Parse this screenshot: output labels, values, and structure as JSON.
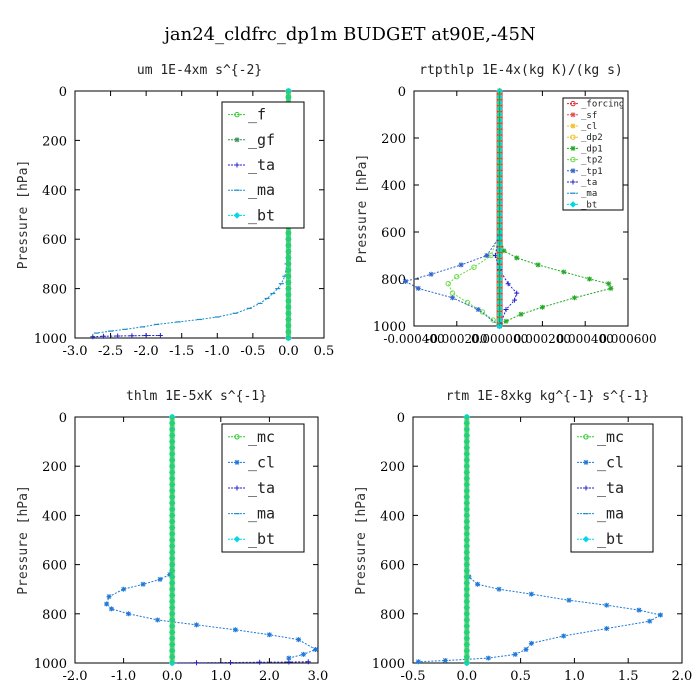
{
  "suptitle": "jan24_cldfrc_dp1m  BUDGET at90E,-45N",
  "colors": {
    "f": "#2ecc2e",
    "gf": "#3a8f5a",
    "ta": "#2222cc",
    "ma": "#1e90c8",
    "bt": "#00d8e8",
    "cl": "#1e78d8",
    "mc": "#33cc33",
    "forcing": "#e02020",
    "sf": "#e05050",
    "dp2": "#f0c020",
    "dp1": "#22aa22",
    "tp2": "#66dd44",
    "tp1": "#3366cc"
  },
  "chart_data": [
    {
      "type": "line",
      "title": "um   1E-4xm s^{-2}",
      "ylabel": "Pressure [hPa]",
      "xlim": [
        -3.0,
        0.5
      ],
      "ylim": [
        1000,
        0
      ],
      "y_inverted": true,
      "xticks": [
        -3.0,
        -2.5,
        -2.0,
        -1.5,
        -1.0,
        -0.5,
        0.0,
        0.5
      ],
      "xtick_labels": [
        "-3.0",
        "-2.5",
        "-2.0",
        "-1.5",
        "-1.0",
        "-0.5",
        "0.0",
        "0.5"
      ],
      "yticks": [
        0,
        200,
        400,
        600,
        800,
        1000
      ],
      "ytick_labels": [
        "0",
        "200",
        "400",
        "600",
        "800",
        "1000"
      ],
      "legend_position": "top-right",
      "series": [
        {
          "name": "_f",
          "color_key": "f",
          "marker": "circle",
          "x": [
            0,
            0
          ],
          "y": [
            0,
            1000
          ]
        },
        {
          "name": "_gf",
          "color_key": "gf",
          "marker": "star",
          "x": [
            0,
            0
          ],
          "y": [
            0,
            1000
          ]
        },
        {
          "name": "_ta",
          "color_key": "ta",
          "marker": "plus",
          "x": [
            0,
            0
          ],
          "y": [
            0,
            1000
          ]
        },
        {
          "name": "_ma",
          "color_key": "ma",
          "marker": "dash",
          "x": [
            0.0,
            -0.02,
            -0.05,
            -0.1,
            -0.15,
            -0.22,
            -0.3,
            -0.4,
            -0.55,
            -0.75,
            -1.0,
            -1.25,
            -1.55,
            -1.85,
            -2.05,
            -2.3,
            -2.5,
            -2.7
          ],
          "y": [
            600,
            700,
            750,
            780,
            800,
            820,
            840,
            860,
            880,
            900,
            915,
            925,
            935,
            945,
            955,
            965,
            972,
            980
          ]
        },
        {
          "name": "_bt",
          "color_key": "bt",
          "marker": "diamond",
          "x": [
            0,
            0
          ],
          "y": [
            0,
            1000
          ]
        },
        {
          "name": "",
          "color_key": "ta",
          "marker": "plus",
          "x": [
            -2.75,
            -2.6,
            -2.4,
            -2.2,
            -2.0,
            -1.8
          ],
          "y": [
            995,
            993,
            992,
            991,
            990,
            990
          ]
        }
      ],
      "curve_series": 3
    },
    {
      "type": "line",
      "title": "rtpthlp   1E-4x(kg K)/(kg s)",
      "ylabel": "Pressure [hPa]",
      "xlim": [
        -0.0004,
        0.0006
      ],
      "ylim": [
        1000,
        0
      ],
      "y_inverted": true,
      "xticks": [
        -0.0004,
        -0.0002,
        0.0,
        0.0002,
        0.0004,
        0.0006
      ],
      "xtick_labels": [
        "-0.000400",
        "-0.000200",
        "0.000000",
        "0.000200",
        "0.000400",
        "0.000600"
      ],
      "yticks": [
        0,
        200,
        400,
        600,
        800,
        1000
      ],
      "ytick_labels": [
        "0",
        "200",
        "400",
        "600",
        "800",
        "1000"
      ],
      "legend_position": "top-right",
      "series": [
        {
          "name": "_forcing",
          "color_key": "forcing",
          "marker": "circle",
          "x": [
            0,
            0
          ],
          "y": [
            0,
            1000
          ]
        },
        {
          "name": "_sf",
          "color_key": "sf",
          "marker": "star",
          "x": [
            0,
            0
          ],
          "y": [
            0,
            1000
          ]
        },
        {
          "name": "_cl",
          "color_key": "dp2",
          "marker": "star",
          "x": [
            0,
            0
          ],
          "y": [
            0,
            1000
          ]
        },
        {
          "name": "_dp2",
          "color_key": "dp2",
          "marker": "circle",
          "x": [
            0,
            0
          ],
          "y": [
            0,
            1000
          ]
        },
        {
          "name": "_dp1",
          "color_key": "dp1",
          "marker": "star",
          "x": [
            0.0,
            2e-05,
            8e-05,
            0.00018,
            0.0003,
            0.00042,
            0.00051,
            0.00052,
            0.00035,
            0.0002,
            0.0001,
            3e-05,
            0.0
          ],
          "y": [
            600,
            680,
            710,
            740,
            770,
            800,
            820,
            840,
            880,
            920,
            950,
            980,
            1000
          ]
        },
        {
          "name": "_tp2",
          "color_key": "tp2",
          "marker": "circle",
          "x": [
            0.0,
            -4e-05,
            -0.00012,
            -0.0002,
            -0.00024,
            -0.00022,
            -0.00015,
            -8e-05,
            -3e-05,
            0.0
          ],
          "y": [
            600,
            700,
            750,
            790,
            820,
            860,
            900,
            940,
            975,
            1000
          ]
        },
        {
          "name": "_tp1",
          "color_key": "tp1",
          "marker": "star",
          "x": [
            0.0,
            -6e-05,
            -0.00018,
            -0.00032,
            -0.00044,
            -0.00038,
            -0.00022,
            -0.0001,
            0.0
          ],
          "y": [
            620,
            700,
            740,
            780,
            810,
            840,
            880,
            930,
            1000
          ]
        },
        {
          "name": "_ta",
          "color_key": "ta",
          "marker": "plus",
          "x": [
            0.0,
            -2e-05,
            0.0,
            4e-05,
            8e-05,
            7e-05,
            3e-05,
            0.0
          ],
          "y": [
            600,
            700,
            760,
            820,
            860,
            890,
            930,
            1000
          ]
        },
        {
          "name": "_ma",
          "color_key": "ma",
          "marker": "dash",
          "x": [
            0,
            0
          ],
          "y": [
            0,
            1000
          ]
        },
        {
          "name": "_bt",
          "color_key": "bt",
          "marker": "diamond",
          "x": [
            0,
            0
          ],
          "y": [
            0,
            1000
          ]
        }
      ],
      "vertical_band_color_key": "forcing"
    },
    {
      "type": "line",
      "title": "thlm   1E-5xK s^{-1}",
      "ylabel": "Pressure [hPa]",
      "xlim": [
        -2.0,
        3.0
      ],
      "ylim": [
        1000,
        0
      ],
      "y_inverted": true,
      "xticks": [
        -2.0,
        -1.0,
        0.0,
        1.0,
        2.0,
        3.0
      ],
      "xtick_labels": [
        "-2.0",
        "-1.0",
        "0.0",
        "1.0",
        "2.0",
        "3.0"
      ],
      "yticks": [
        0,
        200,
        400,
        600,
        800,
        1000
      ],
      "ytick_labels": [
        "0",
        "200",
        "400",
        "600",
        "800",
        "1000"
      ],
      "legend_position": "top-right",
      "series": [
        {
          "name": "_mc",
          "color_key": "mc",
          "marker": "circle",
          "x": [
            0,
            0
          ],
          "y": [
            0,
            1000
          ]
        },
        {
          "name": "_cl",
          "color_key": "cl",
          "marker": "star",
          "x": [
            0.0,
            -0.05,
            -0.25,
            -0.6,
            -1.0,
            -1.3,
            -1.35,
            -1.25,
            -0.9,
            -0.3,
            0.5,
            1.3,
            2.0,
            2.6,
            2.95,
            2.7,
            2.4
          ],
          "y": [
            600,
            640,
            660,
            680,
            700,
            730,
            760,
            780,
            800,
            825,
            845,
            865,
            885,
            905,
            945,
            965,
            980
          ]
        },
        {
          "name": "_ta",
          "color_key": "ta",
          "marker": "plus",
          "x": [
            0.0,
            0.5,
            1.2,
            1.8,
            2.4,
            2.8
          ],
          "y": [
            1000,
            999,
            998,
            997,
            996,
            995
          ]
        },
        {
          "name": "_ma",
          "color_key": "ma",
          "marker": "dash",
          "x": [
            0,
            0
          ],
          "y": [
            0,
            1000
          ]
        },
        {
          "name": "_bt",
          "color_key": "bt",
          "marker": "diamond",
          "x": [
            0,
            0
          ],
          "y": [
            0,
            1000
          ]
        }
      ]
    },
    {
      "type": "line",
      "title": "rtm   1E-8xkg kg^{-1} s^{-1}",
      "ylabel": "Pressure [hPa]",
      "xlim": [
        -0.5,
        2.0
      ],
      "ylim": [
        1000,
        0
      ],
      "y_inverted": true,
      "xticks": [
        -0.5,
        0.0,
        0.5,
        1.0,
        1.5,
        2.0
      ],
      "xtick_labels": [
        "-0.5",
        "0.0",
        "0.5",
        "1.0",
        "1.5",
        "2.0"
      ],
      "yticks": [
        0,
        200,
        400,
        600,
        800,
        1000
      ],
      "ytick_labels": [
        "0",
        "200",
        "400",
        "600",
        "800",
        "1000"
      ],
      "legend_position": "top-right",
      "series": [
        {
          "name": "_mc",
          "color_key": "mc",
          "marker": "circle",
          "x": [
            0,
            0
          ],
          "y": [
            0,
            1000
          ]
        },
        {
          "name": "_cl",
          "color_key": "cl",
          "marker": "star",
          "x": [
            0.0,
            0.02,
            0.1,
            0.3,
            0.6,
            0.95,
            1.3,
            1.6,
            1.8,
            1.7,
            1.3,
            0.9,
            0.6,
            0.55,
            0.45,
            0.2,
            -0.2,
            -0.45
          ],
          "y": [
            600,
            650,
            680,
            700,
            720,
            745,
            765,
            785,
            805,
            830,
            860,
            890,
            920,
            945,
            965,
            980,
            990,
            995
          ]
        },
        {
          "name": "_ta",
          "color_key": "ta",
          "marker": "plus",
          "x": [
            0,
            0
          ],
          "y": [
            0,
            1000
          ]
        },
        {
          "name": "_ma",
          "color_key": "ma",
          "marker": "dash",
          "x": [
            0,
            0
          ],
          "y": [
            0,
            1000
          ]
        },
        {
          "name": "_bt",
          "color_key": "bt",
          "marker": "diamond",
          "x": [
            0,
            0
          ],
          "y": [
            0,
            1000
          ]
        }
      ]
    }
  ]
}
